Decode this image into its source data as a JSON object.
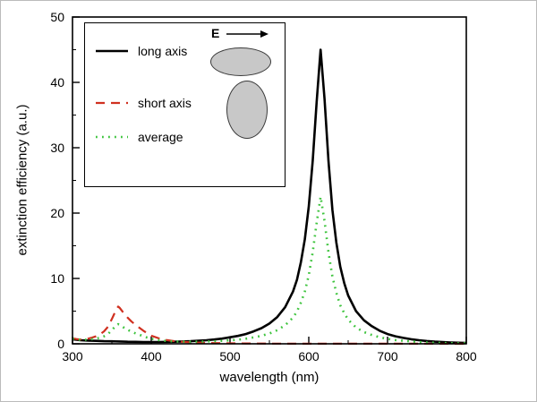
{
  "figure": {
    "background": "#ffffff"
  },
  "chart_data": {
    "type": "line",
    "title": "",
    "xlabel": "wavelength (nm)",
    "ylabel": "extinction efficiency (a.u.)",
    "xlim": [
      300,
      800
    ],
    "ylim": [
      0,
      50
    ],
    "xticks": [
      300,
      400,
      500,
      600,
      700,
      800
    ],
    "yticks": [
      0,
      10,
      20,
      30,
      40,
      50
    ],
    "x_minor_step": 50,
    "y_minor_step": 5,
    "grid": false,
    "legend_position": "top-left",
    "axis_color": "#000000",
    "inset": {
      "e_field_label": "E"
    },
    "series": [
      {
        "name": "long axis",
        "color": "#000000",
        "line_style": "solid",
        "width": 2.6,
        "points": [
          [
            300,
            0.7
          ],
          [
            310,
            0.55
          ],
          [
            320,
            0.5
          ],
          [
            330,
            0.45
          ],
          [
            340,
            0.4
          ],
          [
            350,
            0.38
          ],
          [
            360,
            0.35
          ],
          [
            370,
            0.32
          ],
          [
            380,
            0.3
          ],
          [
            390,
            0.28
          ],
          [
            400,
            0.28
          ],
          [
            410,
            0.28
          ],
          [
            420,
            0.3
          ],
          [
            430,
            0.32
          ],
          [
            440,
            0.35
          ],
          [
            450,
            0.4
          ],
          [
            460,
            0.47
          ],
          [
            470,
            0.55
          ],
          [
            480,
            0.66
          ],
          [
            490,
            0.8
          ],
          [
            500,
            1.0
          ],
          [
            510,
            1.2
          ],
          [
            520,
            1.5
          ],
          [
            530,
            1.9
          ],
          [
            540,
            2.4
          ],
          [
            550,
            3.1
          ],
          [
            560,
            4.1
          ],
          [
            570,
            5.6
          ],
          [
            580,
            8.0
          ],
          [
            585,
            9.8
          ],
          [
            590,
            12.5
          ],
          [
            595,
            16.0
          ],
          [
            600,
            21.0
          ],
          [
            605,
            28.0
          ],
          [
            610,
            37.0
          ],
          [
            615,
            45.0
          ],
          [
            620,
            37.5
          ],
          [
            625,
            28.0
          ],
          [
            630,
            20.5
          ],
          [
            635,
            15.5
          ],
          [
            640,
            11.8
          ],
          [
            645,
            9.3
          ],
          [
            650,
            7.4
          ],
          [
            660,
            5.0
          ],
          [
            670,
            3.6
          ],
          [
            680,
            2.7
          ],
          [
            690,
            2.0
          ],
          [
            700,
            1.5
          ],
          [
            710,
            1.15
          ],
          [
            720,
            0.9
          ],
          [
            730,
            0.7
          ],
          [
            740,
            0.55
          ],
          [
            750,
            0.42
          ],
          [
            760,
            0.33
          ],
          [
            770,
            0.26
          ],
          [
            780,
            0.2
          ],
          [
            790,
            0.16
          ],
          [
            800,
            0.13
          ]
        ]
      },
      {
        "name": "short axis",
        "color": "#d03020",
        "line_style": "dashed",
        "width": 2.2,
        "points": [
          [
            300,
            0.85
          ],
          [
            305,
            0.72
          ],
          [
            310,
            0.66
          ],
          [
            315,
            0.7
          ],
          [
            320,
            0.8
          ],
          [
            325,
            0.95
          ],
          [
            330,
            1.15
          ],
          [
            335,
            1.45
          ],
          [
            340,
            1.9
          ],
          [
            345,
            2.6
          ],
          [
            350,
            3.8
          ],
          [
            355,
            5.1
          ],
          [
            358,
            5.7
          ],
          [
            360,
            5.5
          ],
          [
            365,
            4.7
          ],
          [
            370,
            4.0
          ],
          [
            375,
            3.4
          ],
          [
            380,
            2.9
          ],
          [
            385,
            2.45
          ],
          [
            390,
            2.0
          ],
          [
            395,
            1.6
          ],
          [
            400,
            1.25
          ],
          [
            410,
            0.82
          ],
          [
            420,
            0.56
          ],
          [
            430,
            0.4
          ],
          [
            440,
            0.3
          ],
          [
            450,
            0.23
          ],
          [
            460,
            0.18
          ],
          [
            470,
            0.14
          ],
          [
            480,
            0.11
          ],
          [
            490,
            0.09
          ],
          [
            500,
            0.07
          ],
          [
            520,
            0.05
          ],
          [
            550,
            0.03
          ],
          [
            600,
            0.02
          ],
          [
            650,
            0.01
          ],
          [
            700,
            0.01
          ],
          [
            750,
            0.01
          ],
          [
            800,
            0.0
          ]
        ]
      },
      {
        "name": "average",
        "color": "#3ec43e",
        "line_style": "dotted",
        "width": 2.6,
        "points": [
          [
            300,
            0.78
          ],
          [
            310,
            0.6
          ],
          [
            320,
            0.65
          ],
          [
            330,
            0.8
          ],
          [
            335,
            0.95
          ],
          [
            340,
            1.15
          ],
          [
            345,
            1.5
          ],
          [
            350,
            2.1
          ],
          [
            355,
            2.75
          ],
          [
            358,
            3.0
          ],
          [
            360,
            2.9
          ],
          [
            365,
            2.5
          ],
          [
            370,
            2.15
          ],
          [
            375,
            1.85
          ],
          [
            380,
            1.6
          ],
          [
            385,
            1.38
          ],
          [
            390,
            1.15
          ],
          [
            395,
            0.95
          ],
          [
            400,
            0.77
          ],
          [
            410,
            0.55
          ],
          [
            420,
            0.43
          ],
          [
            430,
            0.36
          ],
          [
            440,
            0.33
          ],
          [
            450,
            0.32
          ],
          [
            460,
            0.33
          ],
          [
            470,
            0.35
          ],
          [
            480,
            0.39
          ],
          [
            490,
            0.45
          ],
          [
            500,
            0.54
          ],
          [
            510,
            0.63
          ],
          [
            520,
            0.78
          ],
          [
            530,
            0.98
          ],
          [
            540,
            1.22
          ],
          [
            550,
            1.57
          ],
          [
            560,
            2.08
          ],
          [
            570,
            2.85
          ],
          [
            580,
            4.0
          ],
          [
            585,
            4.95
          ],
          [
            590,
            6.3
          ],
          [
            595,
            8.0
          ],
          [
            600,
            10.5
          ],
          [
            605,
            14.0
          ],
          [
            610,
            18.5
          ],
          [
            615,
            22.5
          ],
          [
            620,
            18.8
          ],
          [
            625,
            14.0
          ],
          [
            630,
            10.3
          ],
          [
            635,
            7.8
          ],
          [
            640,
            5.9
          ],
          [
            645,
            4.7
          ],
          [
            650,
            3.7
          ],
          [
            660,
            2.5
          ],
          [
            670,
            1.8
          ],
          [
            680,
            1.35
          ],
          [
            690,
            1.0
          ],
          [
            700,
            0.76
          ],
          [
            710,
            0.58
          ],
          [
            720,
            0.46
          ],
          [
            730,
            0.36
          ],
          [
            740,
            0.28
          ],
          [
            750,
            0.21
          ],
          [
            760,
            0.17
          ],
          [
            770,
            0.13
          ],
          [
            780,
            0.1
          ],
          [
            790,
            0.08
          ],
          [
            800,
            0.07
          ]
        ]
      }
    ]
  }
}
